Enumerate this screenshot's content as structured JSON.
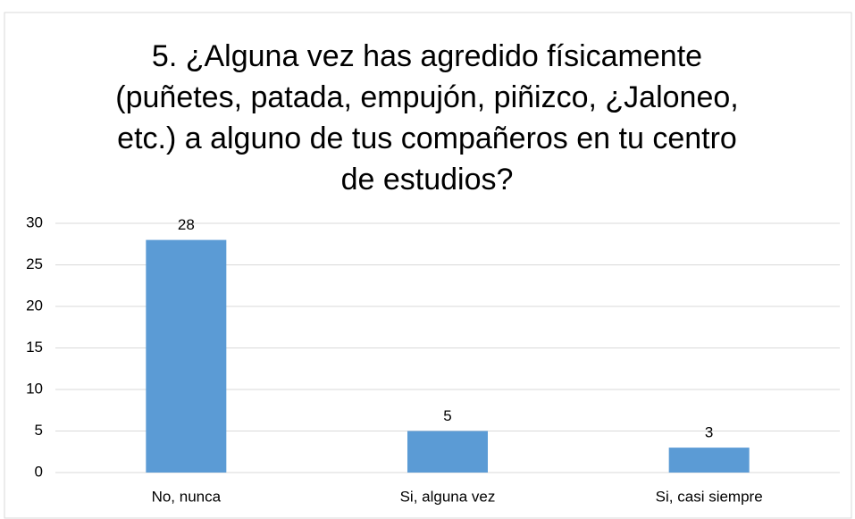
{
  "chart_data": {
    "type": "bar",
    "title": "5. ¿Alguna vez has agredido físicamente (puñetes, patada, empujón, piñizco, ¿Jaloneo, etc.) a alguno de tus compañeros en tu centro de estudios?",
    "categories": [
      "No, nunca",
      "Si, alguna vez",
      "Si, casi siempre"
    ],
    "values": [
      28,
      5,
      3
    ],
    "color": "#5b9bd5",
    "ylim": [
      0,
      30
    ],
    "yticks": [
      0,
      5,
      10,
      15,
      20,
      25,
      30
    ],
    "grid": true
  }
}
